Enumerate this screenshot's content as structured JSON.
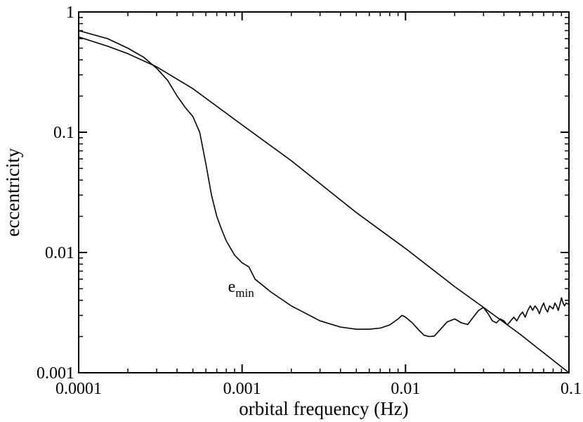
{
  "chart_data": {
    "type": "line",
    "x_scale": "log",
    "y_scale": "log",
    "xlim": [
      0.0001,
      0.1
    ],
    "ylim": [
      0.001,
      1
    ],
    "xlabel": "orbital frequency (Hz)",
    "ylabel": "eccentricity",
    "grid": false,
    "legend": "none",
    "x_ticks": [
      0.0001,
      0.001,
      0.01,
      0.1
    ],
    "x_tick_labels": [
      "0.0001",
      "0.001",
      "0.01",
      "0.1"
    ],
    "y_ticks": [
      0.001,
      0.01,
      0.1,
      1
    ],
    "y_tick_labels": [
      "0.001",
      "0.01",
      "0.1",
      "1"
    ],
    "annotations": [
      {
        "base": "e",
        "sub": "min",
        "x": 0.00082,
        "y": 0.0047
      }
    ],
    "series": [
      {
        "x": [
          0.0001,
          0.00015,
          0.0002,
          0.0003,
          0.0005,
          0.001,
          0.002,
          0.005,
          0.01,
          0.02,
          0.03,
          0.05,
          0.1
        ],
        "y": [
          0.62,
          0.52,
          0.45,
          0.35,
          0.23,
          0.115,
          0.058,
          0.0215,
          0.0108,
          0.0052,
          0.0035,
          0.0021,
          0.001
        ]
      },
      {
        "x": [
          0.0001,
          0.00015,
          0.0002,
          0.00025,
          0.0003,
          0.00035,
          0.0004,
          0.00045,
          0.0005,
          0.00055,
          0.0006,
          0.00065,
          0.0007,
          0.00075,
          0.0008,
          0.0009,
          0.001,
          0.0011,
          0.0012,
          0.0015,
          0.002,
          0.003,
          0.004,
          0.005,
          0.006,
          0.007,
          0.008,
          0.009,
          0.0095,
          0.01,
          0.011,
          0.012,
          0.013,
          0.014,
          0.015,
          0.016,
          0.018,
          0.02,
          0.022,
          0.024,
          0.026,
          0.028,
          0.03,
          0.032,
          0.034,
          0.036,
          0.038,
          0.04,
          0.042,
          0.044,
          0.046,
          0.048,
          0.05,
          0.052,
          0.054,
          0.056,
          0.058,
          0.06,
          0.062,
          0.064,
          0.066,
          0.068,
          0.07,
          0.072,
          0.074,
          0.076,
          0.078,
          0.08,
          0.082,
          0.084,
          0.086,
          0.088,
          0.09,
          0.092,
          0.094,
          0.096,
          0.1
        ],
        "y": [
          0.7,
          0.6,
          0.5,
          0.42,
          0.34,
          0.27,
          0.2,
          0.16,
          0.135,
          0.1,
          0.055,
          0.03,
          0.02,
          0.0155,
          0.0125,
          0.0095,
          0.0082,
          0.0076,
          0.006,
          0.0047,
          0.0036,
          0.0027,
          0.0024,
          0.0023,
          0.0023,
          0.00235,
          0.0025,
          0.0028,
          0.003,
          0.0029,
          0.0026,
          0.00228,
          0.00205,
          0.002,
          0.00202,
          0.00222,
          0.00265,
          0.0028,
          0.0026,
          0.00252,
          0.0029,
          0.0033,
          0.0035,
          0.0031,
          0.0027,
          0.0026,
          0.0028,
          0.0027,
          0.0025,
          0.0027,
          0.0029,
          0.0027,
          0.003,
          0.0032,
          0.0029,
          0.0033,
          0.0036,
          0.0033,
          0.0036,
          0.0034,
          0.0031,
          0.0035,
          0.0038,
          0.0034,
          0.0032,
          0.0036,
          0.0035,
          0.0034,
          0.0038,
          0.0036,
          0.0033,
          0.0037,
          0.0042,
          0.0038,
          0.0036,
          0.0038,
          0.0037
        ]
      }
    ]
  }
}
